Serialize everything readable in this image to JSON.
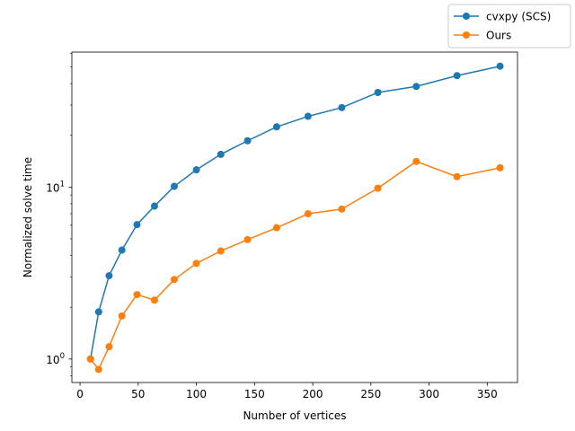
{
  "chart_data": {
    "type": "line",
    "title": "",
    "xlabel": "Number of vertices",
    "ylabel": "Normalized solve time",
    "yscale": "log",
    "xlim": [
      -7,
      376
    ],
    "ylim": [
      0.73,
      61
    ],
    "x_ticks": [
      {
        "value": 0,
        "label": "0"
      },
      {
        "value": 50,
        "label": "50"
      },
      {
        "value": 100,
        "label": "100"
      },
      {
        "value": 150,
        "label": "150"
      },
      {
        "value": 200,
        "label": "200"
      },
      {
        "value": 250,
        "label": "250"
      },
      {
        "value": 300,
        "label": "300"
      },
      {
        "value": 350,
        "label": "350"
      }
    ],
    "y_major_ticks": [
      {
        "value": 1,
        "label_base": "10",
        "label_exp": "0"
      },
      {
        "value": 10,
        "label_base": "10",
        "label_exp": "1"
      }
    ],
    "y_minor_ticks": [
      0.8,
      0.9,
      2,
      3,
      4,
      5,
      6,
      7,
      8,
      9,
      20,
      30,
      40,
      50,
      60
    ],
    "legend_position": "top-right",
    "x": [
      9,
      16,
      25,
      36,
      49,
      64,
      81,
      100,
      121,
      144,
      169,
      196,
      225,
      256,
      289,
      324,
      361
    ],
    "series": [
      {
        "name": "cvxpy (SCS)",
        "color": "#1f77b4",
        "values": [
          1.0,
          1.88,
          3.05,
          4.3,
          6.05,
          7.75,
          10.1,
          12.6,
          15.5,
          18.6,
          22.4,
          25.8,
          29.0,
          35.5,
          38.5,
          44.5,
          50.5
        ]
      },
      {
        "name": "Ours",
        "color": "#ff7f0e",
        "values": [
          1.0,
          0.87,
          1.18,
          1.78,
          2.37,
          2.2,
          2.9,
          3.6,
          4.25,
          4.95,
          5.8,
          7.0,
          7.45,
          9.85,
          14.1,
          11.5,
          12.95
        ]
      }
    ]
  }
}
